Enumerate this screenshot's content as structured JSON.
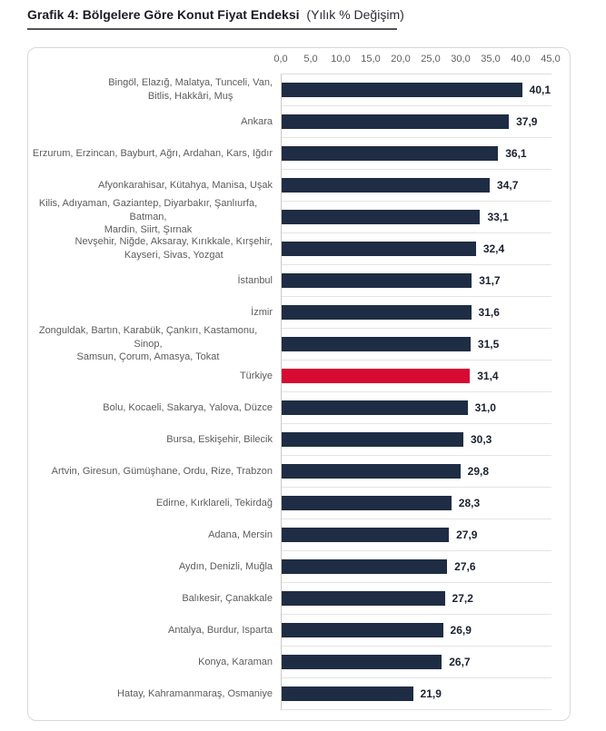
{
  "header": {
    "title_bold": "Grafik 4: Bölgelere Göre Konut Fiyat Endeksi",
    "title_suffix": "(Yılık % Değişim)"
  },
  "chart_data": {
    "type": "bar",
    "orientation": "horizontal",
    "title": "Grafik 4: Bölgelere Göre Konut Fiyat Endeksi (Yılık % Değişim)",
    "xlabel": "",
    "ylabel": "",
    "xlim": [
      0,
      45
    ],
    "x_ticks": [
      "0,0",
      "5,0",
      "10,0",
      "15,0",
      "20,0",
      "25,0",
      "30,0",
      "35,0",
      "40,0",
      "45,0"
    ],
    "grid": false,
    "legend": false,
    "bar_color": "#1f2d44",
    "highlight_color": "#d60a33",
    "highlight_index": 9,
    "highlight_category": "Türkiye",
    "categories": [
      "Bingöl, Elazığ, Malatya, Tunceli, Van,\nBitlis, Hakkâri, Muş",
      "Ankara",
      "Erzurum, Erzincan, Bayburt, Ağrı, Ardahan, Kars, Iğdır",
      "Afyonkarahisar, Kütahya, Manisa, Uşak",
      "Kilis, Adıyaman, Gaziantep, Diyarbakır, Şanlıurfa, Batman,\nMardin, Siirt, Şırnak",
      "Nevşehir, Niğde, Aksaray, Kırıkkale, Kırşehir,\nKayseri, Sivas, Yozgat",
      "İstanbul",
      "İzmir",
      "Zonguldak, Bartın, Karabük, Çankırı, Kastamonu, Sinop,\nSamsun, Çorum, Amasya, Tokat",
      "Türkiye",
      "Bolu, Kocaeli, Sakarya, Yalova, Düzce",
      "Bursa, Eskişehir, Bilecik",
      "Artvin, Giresun, Gümüşhane, Ordu, Rize, Trabzon",
      "Edirne, Kırklareli, Tekirdağ",
      "Adana, Mersin",
      "Aydın, Denizli, Muğla",
      "Balıkesir, Çanakkale",
      "Antalya, Burdur, Isparta",
      "Konya, Karaman",
      "Hatay, Kahramanmaraş, Osmaniye"
    ],
    "values": [
      40.1,
      37.9,
      36.1,
      34.7,
      33.1,
      32.4,
      31.7,
      31.6,
      31.5,
      31.4,
      31.0,
      30.3,
      29.8,
      28.3,
      27.9,
      27.6,
      27.2,
      26.9,
      26.7,
      21.9
    ],
    "value_labels": [
      "40,1",
      "37,9",
      "36,1",
      "34,7",
      "33,1",
      "32,4",
      "31,7",
      "31,6",
      "31,5",
      "31,4",
      "31,0",
      "30,3",
      "29,8",
      "28,3",
      "27,9",
      "27,6",
      "27,2",
      "26,9",
      "26,7",
      "21,9"
    ]
  }
}
